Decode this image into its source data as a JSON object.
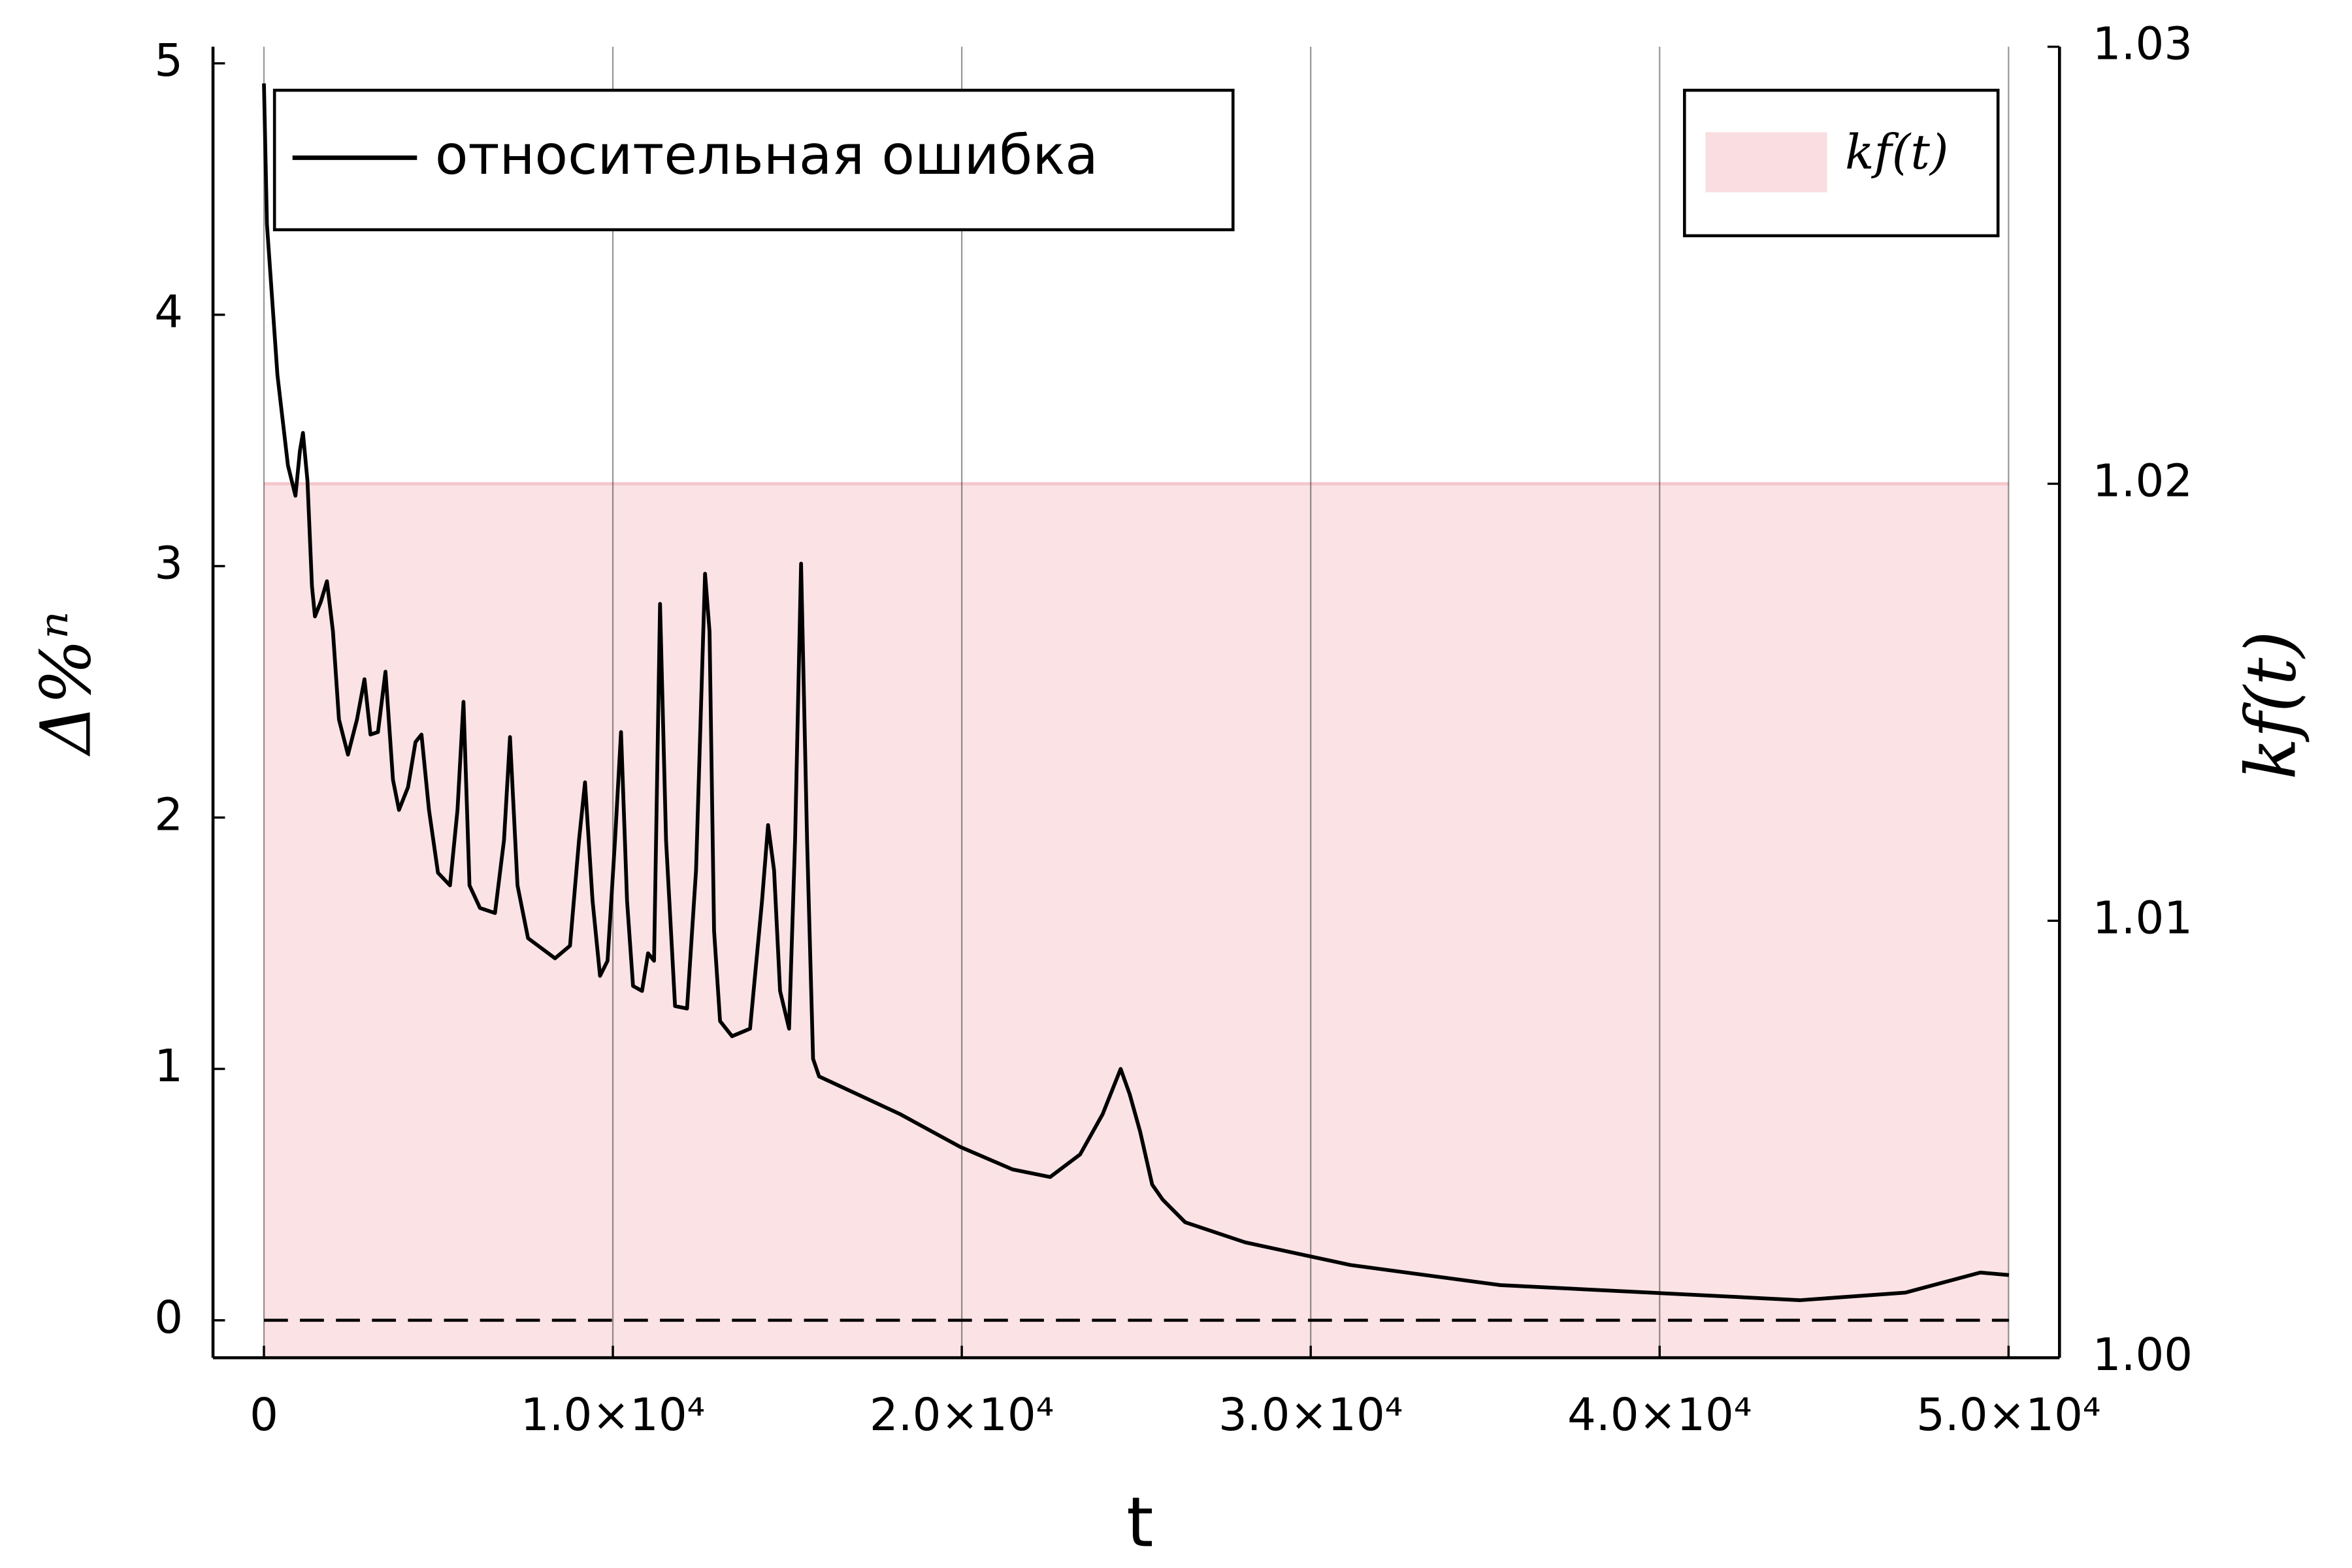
{
  "chart_data": {
    "type": "line",
    "xlabel": "t",
    "ylabel": "Δ%ⁿ",
    "y2label": "kf(t)",
    "xlim": [
      -1460,
      51460
    ],
    "ylim": [
      -0.149,
      5.066
    ],
    "y2lim": [
      1.0,
      1.03
    ],
    "xticks": [
      0,
      {
        "value": 10000,
        "label": "1.0×10⁴"
      },
      {
        "value": 20000,
        "label": "2.0×10⁴"
      },
      {
        "value": 30000,
        "label": "3.0×10⁴"
      },
      {
        "value": 40000,
        "label": "4.0×10⁴"
      },
      {
        "value": 50000,
        "label": "5.0×10⁴"
      }
    ],
    "yticks": [
      0,
      1,
      2,
      3,
      4,
      5
    ],
    "y2ticks": [
      {
        "value": 1,
        "label": "1.00"
      },
      1.01,
      1.02,
      1.03
    ],
    "grid": "x",
    "hlines": [
      0
    ],
    "series": [
      {
        "name": "относительная ошибка",
        "color": "#000000",
        "style": "line",
        "legend": "upper left",
        "x": [
          0,
          86,
          387,
          688,
          903,
          1032,
          1118,
          1247,
          1376,
          1462,
          1634,
          1806,
          1978,
          2150,
          2408,
          2666,
          2881,
          3053,
          3268,
          3483,
          3698,
          3870,
          4128,
          4343,
          4515,
          4730,
          4988,
          5332,
          5547,
          5719,
          5891,
          6192,
          6622,
          6880,
          7052,
          7267,
          7568,
          8342,
          8772,
          9030,
          9202,
          9417,
          9632,
          9847,
          10062,
          10234,
          10406,
          10578,
          10836,
          11008,
          11180,
          11352,
          11524,
          11782,
          12126,
          12384,
          12642,
          12771,
          12900,
          13072,
          13416,
          13932,
          14276,
          14448,
          14620,
          14792,
          15050,
          15222,
          15394,
          15566,
          15738,
          15910,
          18232,
          19952,
          21457,
          22532,
          23392,
          24037,
          24553,
          24811,
          25112,
          25456,
          25757,
          26402,
          28122,
          31132,
          35432,
          39732,
          44032,
          47042,
          49192,
          50010
        ],
        "values": [
          4.92,
          4.36,
          3.76,
          3.4,
          3.28,
          3.46,
          3.53,
          3.34,
          2.92,
          2.8,
          2.86,
          2.94,
          2.74,
          2.39,
          2.25,
          2.39,
          2.55,
          2.33,
          2.34,
          2.58,
          2.15,
          2.03,
          2.12,
          2.3,
          2.33,
          2.03,
          1.78,
          1.73,
          2.03,
          2.46,
          1.73,
          1.64,
          1.62,
          1.91,
          2.32,
          1.73,
          1.52,
          1.44,
          1.49,
          1.91,
          2.14,
          1.67,
          1.37,
          1.43,
          1.91,
          2.34,
          1.67,
          1.33,
          1.31,
          1.46,
          1.43,
          2.85,
          1.91,
          1.25,
          1.24,
          1.79,
          2.97,
          2.74,
          1.55,
          1.19,
          1.13,
          1.16,
          1.67,
          1.97,
          1.79,
          1.31,
          1.16,
          1.91,
          3.01,
          1.91,
          1.04,
          0.97,
          0.82,
          0.69,
          0.6,
          0.57,
          0.66,
          0.82,
          1.0,
          0.9,
          0.75,
          0.54,
          0.48,
          0.39,
          0.31,
          0.22,
          0.14,
          0.11,
          0.08,
          0.11,
          0.19,
          0.18
        ]
      },
      {
        "name": "kf(t)",
        "color": "#f5c6cb",
        "style": "area",
        "axis": "y2",
        "legend": "upper right",
        "x": [
          0,
          50000
        ],
        "values": [
          1.02,
          1.02
        ]
      }
    ]
  }
}
